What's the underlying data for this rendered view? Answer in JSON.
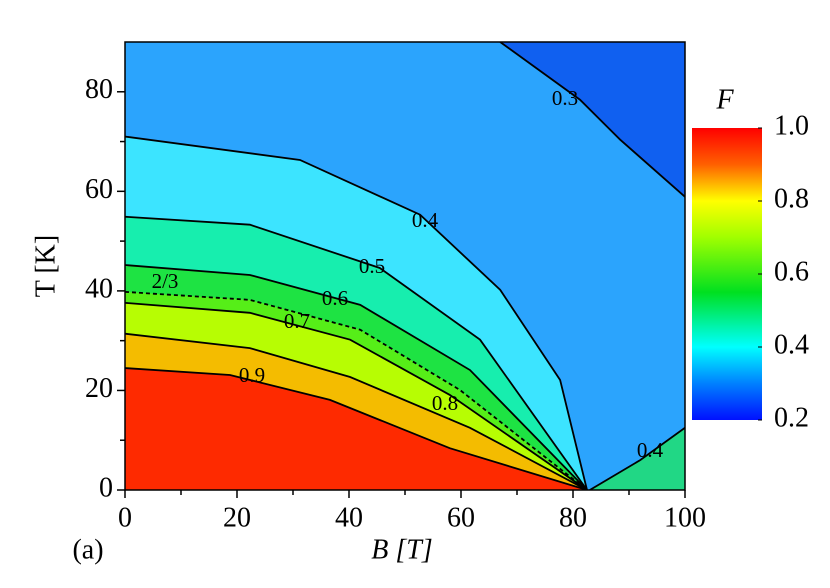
{
  "chart_data": {
    "type": "contour",
    "xlabel": "B [T]",
    "ylabel": "T [K]",
    "panel_label": "(a)",
    "colorbar_title": "F",
    "xlim": [
      0,
      100
    ],
    "ylim": [
      0,
      90
    ],
    "xticks": [
      0,
      20,
      40,
      60,
      80,
      100
    ],
    "yticks": [
      0,
      20,
      40,
      60,
      80
    ],
    "xticks_minor": [
      10,
      30,
      50,
      70,
      90
    ],
    "yticks_minor": [
      10,
      30,
      50,
      70
    ],
    "zlim": [
      0.2,
      1.0
    ],
    "zticks": [
      0.2,
      0.4,
      0.6,
      0.8,
      {
        "value": 1.0,
        "label": "1.0"
      }
    ],
    "colorscale": [
      [
        0.2,
        "#0010ff"
      ],
      [
        0.3,
        "#0080ff"
      ],
      [
        0.4,
        "#00ffff"
      ],
      [
        0.55,
        "#00e020"
      ],
      [
        0.7,
        "#a0ff00"
      ],
      [
        0.8,
        "#ffff00"
      ],
      [
        0.9,
        "#ff6000"
      ],
      [
        1.0,
        "#ff0000"
      ]
    ],
    "background": "#1060f0",
    "series": [
      {
        "name": "0.3",
        "color": "#000000",
        "fill": "#30b0ff",
        "x": [
          67,
          81.25,
          88.4,
          100
        ],
        "y": [
          90,
          78.4,
          70.4,
          58.9
        ]
      },
      {
        "name": "0.4",
        "color": "#000000",
        "fill": "#40f0ff",
        "x": [
          0,
          31.25,
          52.7,
          67,
          77.7,
          82.5
        ],
        "y": [
          71,
          66.3,
          55.3,
          40.2,
          22.1,
          0
        ]
      },
      {
        "name": "0.5",
        "color": "#000000",
        "fill": "#10f0a0",
        "x": [
          0,
          22.3,
          45.5,
          63.4,
          82.5
        ],
        "y": [
          54.9,
          53.3,
          44.6,
          30.2,
          0
        ]
      },
      {
        "name": "0.6",
        "color": "#000000",
        "fill": "#20e030",
        "x": [
          0,
          22.3,
          42,
          61.6,
          82.5
        ],
        "y": [
          45.2,
          43.2,
          37.2,
          24.1,
          0
        ]
      },
      {
        "name": "2/3",
        "color": "#000000",
        "fill": "#60f010",
        "dashed": true,
        "x": [
          0,
          22.3,
          42,
          59.8,
          82.5
        ],
        "y": [
          39.8,
          38.2,
          32.2,
          20.1,
          0
        ]
      },
      {
        "name": "0.7",
        "color": "#000000",
        "fill": "#c8ff00",
        "x": [
          0,
          22.3,
          40.2,
          58,
          82.5
        ],
        "y": [
          37.6,
          35.6,
          30.2,
          19.1,
          0
        ]
      },
      {
        "name": "0.8",
        "color": "#000000",
        "fill": "#ffb000",
        "x": [
          0,
          22.3,
          40.2,
          61.6,
          82.5
        ],
        "y": [
          31.4,
          28.5,
          22.7,
          12.5,
          0
        ]
      },
      {
        "name": "0.9",
        "color": "#000000",
        "fill": "#ff1000",
        "x": [
          0,
          18.75,
          36.6,
          58,
          82.5
        ],
        "y": [
          24.5,
          23.1,
          18.1,
          8.4,
          0
        ]
      },
      {
        "name": "0.4",
        "color": "#000000",
        "fill": "#20e070",
        "x": [
          83,
          92,
          100
        ],
        "y": [
          0,
          6,
          12.5
        ]
      }
    ]
  }
}
